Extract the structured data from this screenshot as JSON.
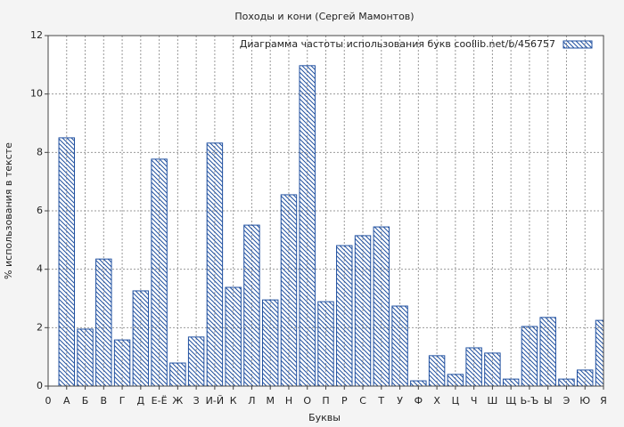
{
  "chart_data": {
    "type": "bar",
    "title": "Походы и кони (Сергей Мамонтов)",
    "x_label": "Буквы",
    "y_label": "% использования в тексте",
    "categories": [
      "0",
      "А",
      "Б",
      "В",
      "Г",
      "Д",
      "Е-Ё",
      "Ж",
      "З",
      "И-Й",
      "К",
      "Л",
      "М",
      "Н",
      "О",
      "П",
      "Р",
      "С",
      "Т",
      "У",
      "Ф",
      "Х",
      "Ц",
      "Ч",
      "Ш",
      "Щ",
      "Ь-Ъ",
      "Ы",
      "Э",
      "Ю",
      "Я"
    ],
    "series": [
      {
        "name": "Диаграмма частоты использования букв  coollib.net/b/456757",
        "color": "#2050a0",
        "values": [
          null,
          8.5,
          1.95,
          4.35,
          1.58,
          3.26,
          7.77,
          0.79,
          1.68,
          8.32,
          3.38,
          5.51,
          2.95,
          6.55,
          10.97,
          2.89,
          4.81,
          5.15,
          5.45,
          2.74,
          0.18,
          1.04,
          0.4,
          1.31,
          1.13,
          0.24,
          2.04,
          2.35,
          0.24,
          0.55,
          2.25
        ]
      }
    ],
    "ylim": [
      0,
      12
    ],
    "yticks": [
      0,
      2,
      4,
      6,
      8,
      10,
      12
    ],
    "grid": true,
    "legend": "top-right"
  }
}
